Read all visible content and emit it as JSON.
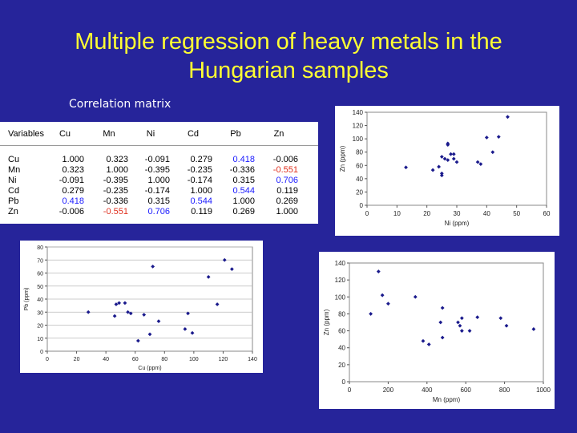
{
  "title": "Multiple regression of heavy metals in the Hungarian samples",
  "subtitle": "Correlation matrix",
  "colors": {
    "background": "#26249a",
    "title": "#ffff33",
    "positive_highlight": "#1a1aff",
    "negative_highlight": "#e0301e",
    "marker": "#1a1a8c"
  },
  "matrix": {
    "corner": "Variables",
    "columns": [
      "Cu",
      "Mn",
      "Ni",
      "Cd",
      "Pb",
      "Zn"
    ],
    "rows": [
      {
        "label": "Cu",
        "values": [
          "1.000",
          "0.323",
          "-0.091",
          "0.279",
          "0.418",
          "-0.006"
        ]
      },
      {
        "label": "Mn",
        "values": [
          "0.323",
          "1.000",
          "-0.395",
          "-0.235",
          "-0.336",
          "-0.551"
        ]
      },
      {
        "label": "Ni",
        "values": [
          "-0.091",
          "-0.395",
          "1.000",
          "-0.174",
          "0.315",
          "0.706"
        ]
      },
      {
        "label": "Cd",
        "values": [
          "0.279",
          "-0.235",
          "-0.174",
          "1.000",
          "0.544",
          "0.119"
        ]
      },
      {
        "label": "Pb",
        "values": [
          "0.418",
          "-0.336",
          "0.315",
          "0.544",
          "1.000",
          "0.269"
        ]
      },
      {
        "label": "Zn",
        "values": [
          "-0.006",
          "-0.551",
          "0.706",
          "0.119",
          "0.269",
          "1.000"
        ]
      }
    ],
    "highlight_blue": [
      [
        0,
        4
      ],
      [
        2,
        5
      ],
      [
        3,
        4
      ],
      [
        4,
        0
      ],
      [
        4,
        3
      ],
      [
        5,
        2
      ]
    ],
    "highlight_red": [
      [
        1,
        5
      ],
      [
        5,
        1
      ]
    ]
  },
  "chart_data": [
    {
      "type": "scatter",
      "id": "ni-zn",
      "xlabel": "Ni (ppm)",
      "ylabel": "Zn (ppm)",
      "xlim": [
        0,
        60
      ],
      "ylim": [
        0,
        140
      ],
      "xticks": [
        0,
        10,
        20,
        30,
        40,
        50,
        60
      ],
      "yticks": [
        0,
        20,
        40,
        60,
        80,
        100,
        120,
        140
      ],
      "grid": false,
      "legend": "none",
      "points": [
        [
          13,
          57
        ],
        [
          22,
          53
        ],
        [
          24,
          58
        ],
        [
          25,
          45
        ],
        [
          25,
          48
        ],
        [
          25,
          73
        ],
        [
          26,
          70
        ],
        [
          27,
          68
        ],
        [
          27,
          93
        ],
        [
          27,
          91
        ],
        [
          28,
          77
        ],
        [
          29,
          70
        ],
        [
          29,
          77
        ],
        [
          30,
          65
        ],
        [
          37,
          65
        ],
        [
          38,
          62
        ],
        [
          40,
          102
        ],
        [
          42,
          80
        ],
        [
          44,
          103
        ],
        [
          47,
          133
        ]
      ]
    },
    {
      "type": "scatter",
      "id": "cu-pb",
      "xlabel": "Cu (ppm)",
      "ylabel": "Pb (ppm)",
      "xlim": [
        0,
        140
      ],
      "ylim": [
        0,
        80
      ],
      "xticks": [
        0,
        20,
        40,
        60,
        80,
        100,
        120,
        140
      ],
      "yticks": [
        0,
        10,
        20,
        30,
        40,
        50,
        60,
        70,
        80
      ],
      "grid": true,
      "legend": "none",
      "points": [
        [
          28,
          30
        ],
        [
          46,
          27
        ],
        [
          47,
          36
        ],
        [
          49,
          37
        ],
        [
          53,
          37
        ],
        [
          55,
          30
        ],
        [
          57,
          29
        ],
        [
          62,
          8
        ],
        [
          66,
          28
        ],
        [
          70,
          13
        ],
        [
          72,
          65
        ],
        [
          76,
          23
        ],
        [
          94,
          17
        ],
        [
          96,
          29
        ],
        [
          99,
          14
        ],
        [
          110,
          57
        ],
        [
          116,
          36
        ],
        [
          121,
          70
        ],
        [
          126,
          63
        ]
      ]
    },
    {
      "type": "scatter",
      "id": "mn-zn",
      "xlabel": "Mn (ppm)",
      "ylabel": "Zn (ppm)",
      "xlim": [
        0,
        1000
      ],
      "ylim": [
        0,
        140
      ],
      "xticks": [
        0,
        200,
        400,
        600,
        800,
        1000
      ],
      "yticks": [
        0,
        20,
        40,
        60,
        80,
        100,
        120,
        140
      ],
      "grid": false,
      "legend": "none",
      "points": [
        [
          110,
          80
        ],
        [
          150,
          130
        ],
        [
          170,
          102
        ],
        [
          200,
          92
        ],
        [
          340,
          100
        ],
        [
          380,
          48
        ],
        [
          410,
          44
        ],
        [
          470,
          70
        ],
        [
          480,
          87
        ],
        [
          480,
          52
        ],
        [
          560,
          70
        ],
        [
          570,
          66
        ],
        [
          580,
          75
        ],
        [
          580,
          60
        ],
        [
          620,
          60
        ],
        [
          660,
          76
        ],
        [
          780,
          75
        ],
        [
          810,
          66
        ],
        [
          950,
          62
        ]
      ]
    }
  ]
}
